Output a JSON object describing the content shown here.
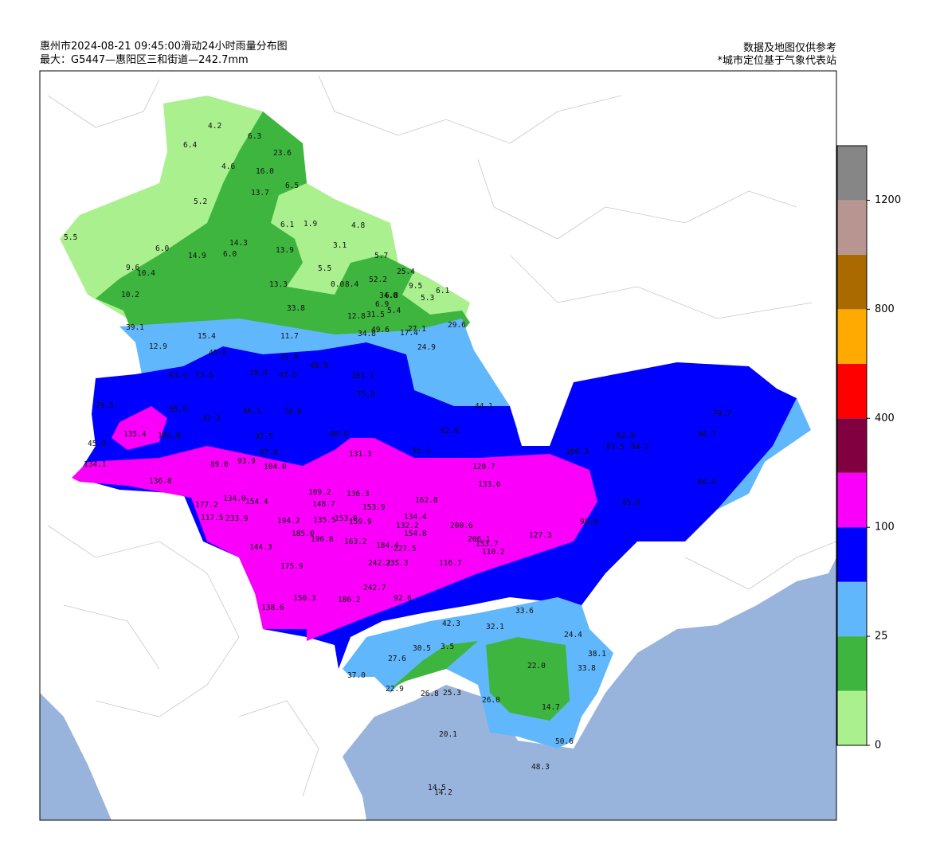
{
  "header": {
    "title": "惠州市2024-08-21 09:45:00滑动24小时雨量分布图",
    "subtitle": "最大：G5447—惠阳区三和街道—242.7mm",
    "note1": "数据及地图仅供参考",
    "note2": "*城市定位基于气象代表站"
  },
  "legend": {
    "colors": [
      "#aaf08f",
      "#3eb53e",
      "#61b7fc",
      "#0000fe",
      "#fa00fa",
      "#800040",
      "#ff0000",
      "#ffaa00",
      "#aa6a00",
      "#b89590",
      "#868686"
    ],
    "ticks": [
      0,
      25,
      100,
      400,
      800,
      1200
    ]
  },
  "stations": [
    "4.2",
    "6.3",
    "6.4",
    "23.6",
    "4.6",
    "16.0",
    "6.5",
    "13.7",
    "5.2",
    "6.1",
    "1.9",
    "4.8",
    "5.5",
    "14.3",
    "3.1",
    "6.0",
    "14.9",
    "6.0",
    "13.9",
    "5.7",
    "5.5",
    "9.6",
    "10.4",
    "25.4",
    "52.2",
    "0.0",
    "8.4",
    "13.3",
    "9.5",
    "6.1",
    "10.2",
    "34.0",
    "6.8",
    "5.3",
    "6.9",
    "33.8",
    "31.5",
    "5.4",
    "12.8",
    "27.1",
    "39.1",
    "29.6",
    "34.8",
    "49.6",
    "17.4",
    "11.7",
    "15.4",
    "12.9",
    "24.9",
    "45.6",
    "31.0",
    "39.0",
    "48.9",
    "97.8",
    "101.1",
    "63.4",
    "73.6",
    "75.0",
    "44.1",
    "79.5",
    "95.9",
    "42.3",
    "96.1",
    "70.0",
    "79.7",
    "62.8",
    "135.4",
    "101.8",
    "97.5",
    "80.6",
    "62.9",
    "96.7",
    "45.9",
    "83.5",
    "84.2",
    "82.0",
    "56.3",
    "100.3",
    "131.3",
    "134.1",
    "89.0",
    "93.9",
    "104.0",
    "120.7",
    "136.8",
    "66.4",
    "133.6",
    "109.2",
    "136.3",
    "177.2",
    "134.0",
    "154.4",
    "148.7",
    "162.8",
    "153.9",
    "65.0",
    "117.5",
    "233.9",
    "134.4",
    "194.2",
    "135.5",
    "153.0",
    "159.9",
    "132.2",
    "200.6",
    "98.8",
    "185.0",
    "154.8",
    "127.3",
    "206.1",
    "196.8",
    "163.2",
    "153.7",
    "184.4",
    "227.5",
    "110.2",
    "144.3",
    "242.2",
    "235.3",
    "116.7",
    "175.9",
    "242.7",
    "150.3",
    "186.2",
    "92.6",
    "138.6",
    "33.6",
    "42.3",
    "32.1",
    "24.4",
    "30.5",
    "3.5",
    "38.1",
    "27.6",
    "22.0",
    "33.8",
    "37.0",
    "22.9",
    "26.8",
    "25.3",
    "26.0",
    "14.7",
    "20.1",
    "50.6",
    "48.3",
    "14.5",
    "14.2"
  ]
}
